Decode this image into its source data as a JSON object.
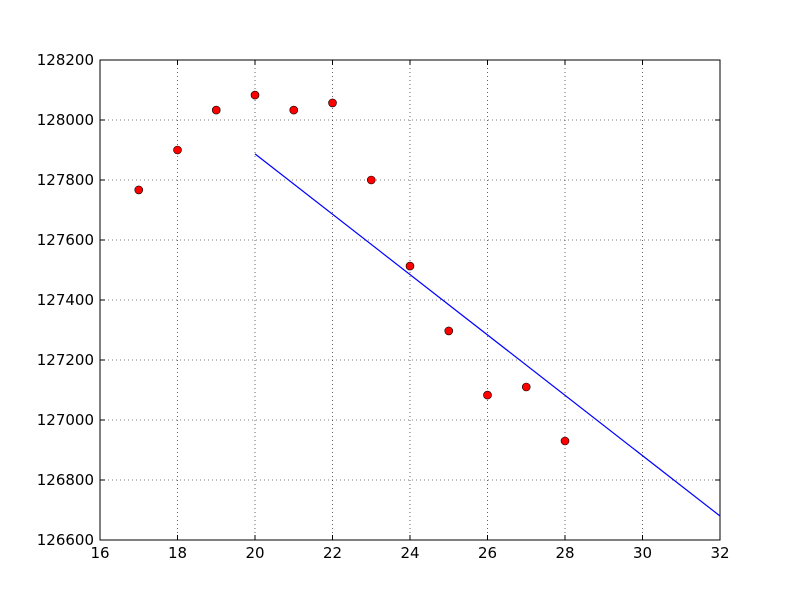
{
  "chart_data": {
    "type": "scatter",
    "series": [
      {
        "type": "scatter",
        "color": "#ff0000",
        "x": [
          17,
          18,
          19,
          20,
          21,
          22,
          23,
          24,
          25,
          26,
          27,
          28
        ],
        "values": [
          127767,
          127900,
          128033,
          128083,
          128033,
          128057,
          127800,
          127513,
          127297,
          127083,
          127110,
          126930
        ]
      },
      {
        "type": "line",
        "color": "#0000ff",
        "x": [
          20,
          32
        ],
        "values": [
          127887,
          126680
        ]
      }
    ],
    "xlim": [
      16,
      32
    ],
    "xticks": [
      16,
      18,
      20,
      22,
      24,
      26,
      28,
      30,
      32
    ],
    "ylim": [
      126600,
      128200
    ],
    "yticks": [
      126600,
      126800,
      127000,
      127200,
      127400,
      127600,
      127800,
      128000,
      128200
    ],
    "grid": true
  }
}
